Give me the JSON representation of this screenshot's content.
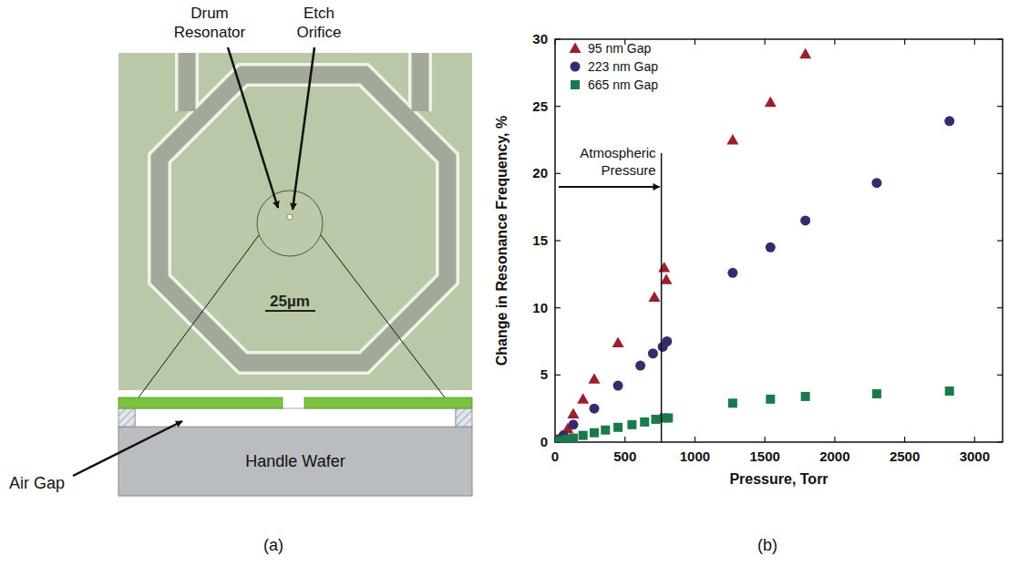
{
  "panels": {
    "a": "(a)",
    "b": "(b)"
  },
  "diagram": {
    "drum_resonator": "Drum Resonator",
    "etch_orifice": "Etch Orifice",
    "scale_bar": "25µm",
    "air_gap": "Air Gap",
    "handle_wafer": "Handle Wafer"
  },
  "chart_data": {
    "type": "scatter",
    "x_label": "Pressure, Torr",
    "y_label": "Change in Resonance Frequency, %",
    "xlim": [
      0,
      3200
    ],
    "xticks": [
      0,
      500,
      1000,
      1500,
      2000,
      2500,
      3000
    ],
    "ylim": [
      0,
      30
    ],
    "yticks": [
      0,
      5,
      10,
      15,
      20,
      25,
      30
    ],
    "grid": false,
    "legend": "upper left",
    "annotations": [
      {
        "text": "Atmospheric Pressure",
        "x": 760
      }
    ],
    "series": [
      {
        "name": "95 nm Gap",
        "color": "#9b1f2e",
        "marker": "triangle",
        "x": [
          10,
          50,
          90,
          130,
          200,
          280,
          450,
          710,
          780,
          795,
          1270,
          1540,
          1790
        ],
        "values": [
          0.1,
          0.5,
          1.0,
          2.1,
          3.2,
          4.7,
          7.4,
          10.8,
          13.0,
          12.1,
          22.5,
          25.3,
          28.9
        ]
      },
      {
        "name": "223 nm Gap",
        "color": "#3b2a6b",
        "marker": "circle",
        "x": [
          20,
          60,
          130,
          280,
          450,
          610,
          700,
          770,
          800,
          1270,
          1540,
          1790,
          2300,
          2820
        ],
        "values": [
          0.2,
          0.5,
          1.3,
          2.5,
          4.2,
          5.7,
          6.6,
          7.1,
          7.5,
          12.6,
          14.5,
          16.5,
          19.3,
          23.9
        ]
      },
      {
        "name": "665 nm Gap",
        "color": "#1a7a4c",
        "marker": "square",
        "x": [
          10,
          40,
          80,
          130,
          200,
          280,
          360,
          450,
          550,
          640,
          720,
          780,
          810,
          1270,
          1540,
          1790,
          2300,
          2820
        ],
        "values": [
          0.05,
          0.1,
          0.2,
          0.3,
          0.5,
          0.7,
          0.9,
          1.1,
          1.3,
          1.5,
          1.7,
          1.8,
          1.8,
          2.9,
          3.2,
          3.4,
          3.6,
          3.8
        ]
      }
    ]
  }
}
